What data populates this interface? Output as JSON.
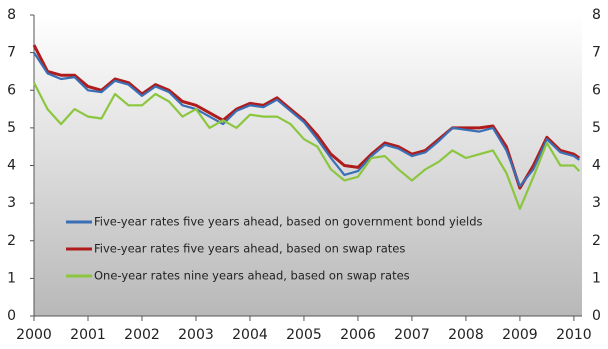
{
  "chart_data": {
    "type": "line",
    "x": [
      2000,
      2000.25,
      2000.5,
      2000.75,
      2001,
      2001.25,
      2001.5,
      2001.75,
      2002,
      2002.25,
      2002.5,
      2002.75,
      2003,
      2003.25,
      2003.5,
      2003.75,
      2004,
      2004.25,
      2004.5,
      2004.75,
      2005,
      2005.25,
      2005.5,
      2005.75,
      2006,
      2006.25,
      2006.5,
      2006.75,
      2007,
      2007.25,
      2007.5,
      2007.75,
      2008,
      2008.25,
      2008.5,
      2008.75,
      2009,
      2009.25,
      2009.5,
      2009.75,
      2010,
      2010.1
    ],
    "series": [
      {
        "name": "Five-year rates five years ahead, based on government bond yields",
        "color": "#3a6fb5",
        "values": [
          7.0,
          6.45,
          6.3,
          6.35,
          6.0,
          5.95,
          6.25,
          6.15,
          5.85,
          6.1,
          5.95,
          5.6,
          5.5,
          5.3,
          5.1,
          5.45,
          5.6,
          5.55,
          5.75,
          5.45,
          5.15,
          4.7,
          4.2,
          3.75,
          3.85,
          4.25,
          4.55,
          4.45,
          4.25,
          4.35,
          4.65,
          5.0,
          4.95,
          4.9,
          5.0,
          4.4,
          3.45,
          3.9,
          4.7,
          4.35,
          4.25,
          4.15
        ]
      },
      {
        "name": "Five-year rates five years ahead, based on swap rates",
        "color": "#b01c1c",
        "values": [
          7.2,
          6.5,
          6.4,
          6.4,
          6.1,
          6.0,
          6.3,
          6.2,
          5.9,
          6.15,
          6.0,
          5.7,
          5.6,
          5.4,
          5.2,
          5.5,
          5.65,
          5.6,
          5.8,
          5.5,
          5.2,
          4.8,
          4.3,
          4.0,
          3.95,
          4.3,
          4.6,
          4.5,
          4.3,
          4.4,
          4.7,
          5.0,
          5.0,
          5.0,
          5.05,
          4.5,
          3.4,
          4.0,
          4.75,
          4.4,
          4.3,
          4.2
        ]
      },
      {
        "name": "One-year rates nine years ahead, based on swap rates",
        "color": "#8cc63f",
        "values": [
          6.2,
          5.5,
          5.1,
          5.5,
          5.3,
          5.25,
          5.9,
          5.6,
          5.6,
          5.9,
          5.7,
          5.3,
          5.5,
          5.0,
          5.2,
          5.0,
          5.35,
          5.3,
          5.3,
          5.1,
          4.7,
          4.5,
          3.9,
          3.6,
          3.7,
          4.2,
          4.25,
          3.9,
          3.6,
          3.9,
          4.1,
          4.4,
          4.2,
          4.3,
          4.4,
          3.8,
          2.85,
          3.7,
          4.6,
          4.0,
          4.0,
          3.85
        ]
      }
    ],
    "xlim": [
      2000,
      2010.15
    ],
    "xticks": [
      2000,
      2001,
      2002,
      2003,
      2004,
      2005,
      2006,
      2007,
      2008,
      2009,
      2010
    ],
    "ylim": [
      0,
      8
    ],
    "yticks": [
      0,
      1,
      2,
      3,
      4,
      5,
      6,
      7,
      8
    ],
    "y2lim": [
      0,
      8
    ],
    "y2ticks": [
      0,
      1,
      2,
      3,
      4,
      5,
      6,
      7,
      8
    ]
  }
}
